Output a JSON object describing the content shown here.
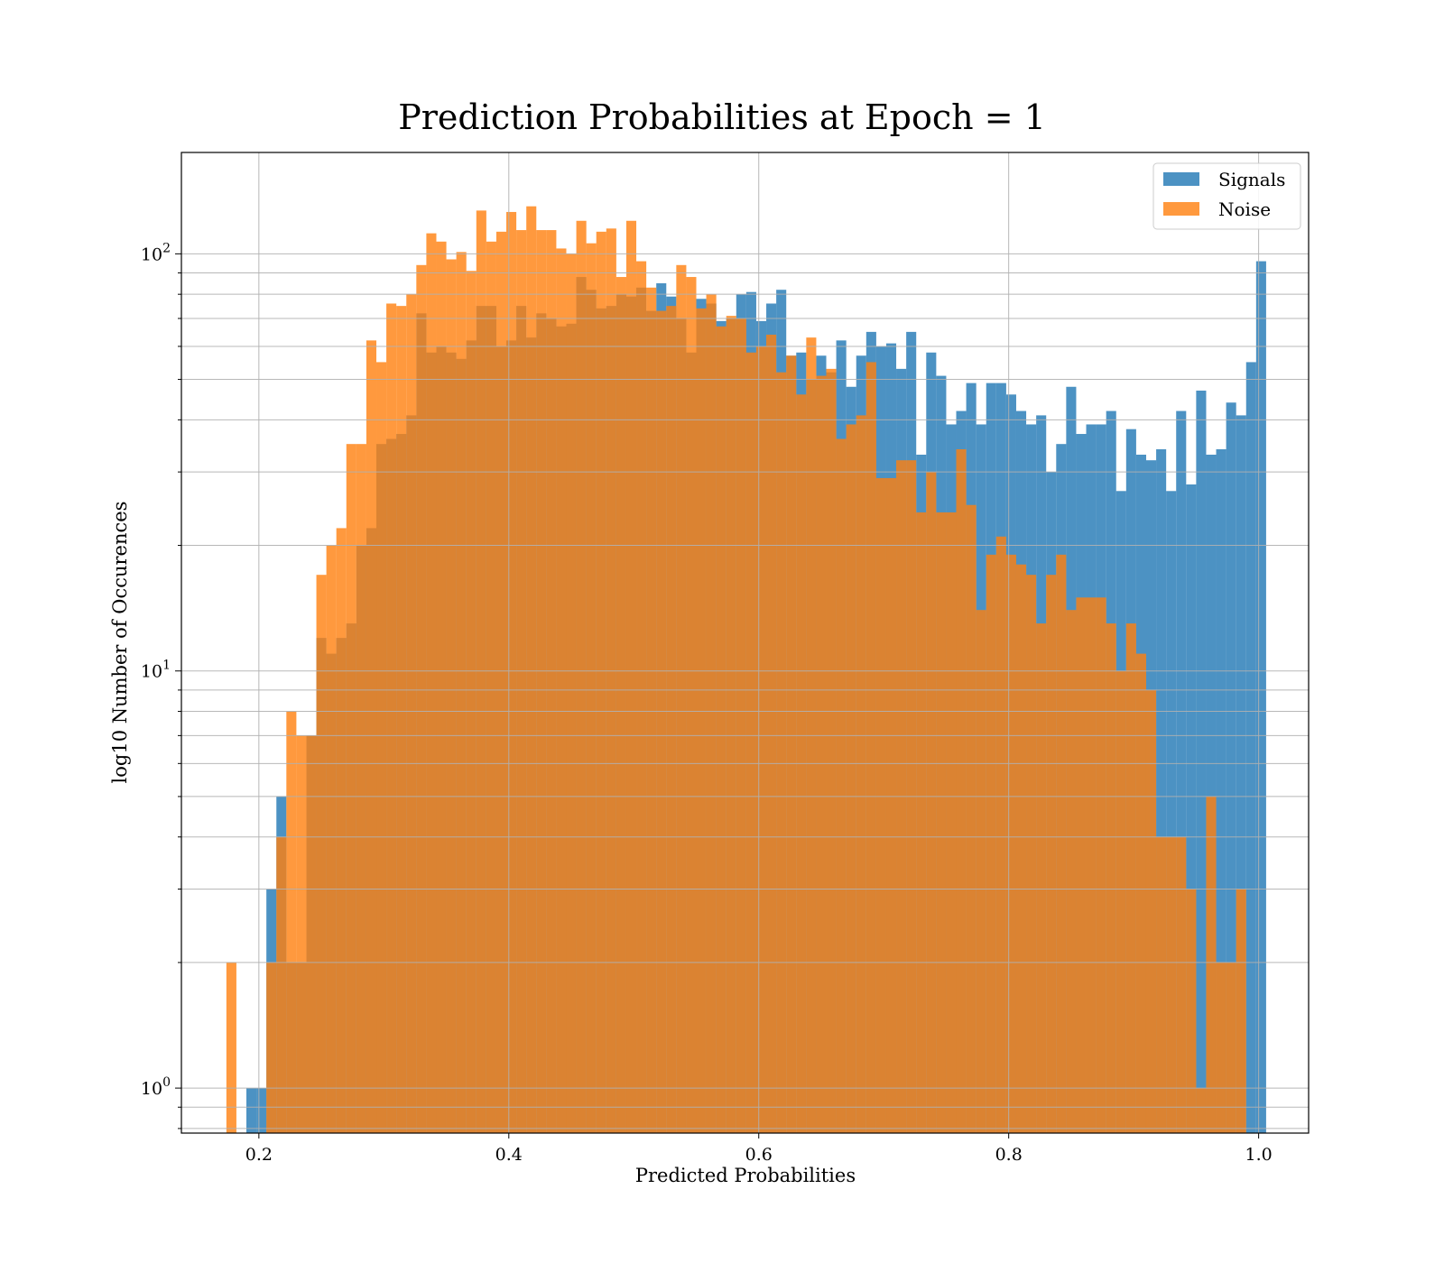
{
  "chart_data": {
    "type": "bar",
    "title": "Prediction Probabilities at Epoch = 1",
    "xlabel": "Predicted Probabilities",
    "ylabel": "log10 Number of Occurences",
    "yscale": "log",
    "xlim": [
      0.138,
      1.04
    ],
    "ylim": [
      0.78,
      175
    ],
    "xticks": [
      0.2,
      0.4,
      0.6,
      0.8,
      1.0
    ],
    "xtick_labels": [
      "0.2",
      "0.4",
      "0.6",
      "0.8",
      "1.0"
    ],
    "yticks": [
      {
        "base": "10",
        "exp": "0",
        "value": 1
      },
      {
        "base": "10",
        "exp": "1",
        "value": 10
      },
      {
        "base": "10",
        "exp": "2",
        "value": 100
      }
    ],
    "grid": true,
    "legend_position": "top-right",
    "series": [
      {
        "name": "Signals",
        "color": "#1f77b4",
        "opacity": 0.8,
        "bins": [
          [
            0.19,
            0.198,
            1
          ],
          [
            0.198,
            0.206,
            1
          ],
          [
            0.206,
            0.214,
            3
          ],
          [
            0.214,
            0.222,
            5
          ],
          [
            0.222,
            0.23,
            2
          ],
          [
            0.23,
            0.238,
            2
          ],
          [
            0.238,
            0.246,
            7
          ],
          [
            0.246,
            0.254,
            12
          ],
          [
            0.254,
            0.262,
            11
          ],
          [
            0.262,
            0.27,
            12
          ],
          [
            0.27,
            0.278,
            13
          ],
          [
            0.278,
            0.286,
            20
          ],
          [
            0.286,
            0.294,
            22
          ],
          [
            0.294,
            0.302,
            35
          ],
          [
            0.302,
            0.31,
            36
          ],
          [
            0.31,
            0.318,
            37
          ],
          [
            0.318,
            0.326,
            41
          ],
          [
            0.326,
            0.334,
            72
          ],
          [
            0.334,
            0.342,
            58
          ],
          [
            0.342,
            0.35,
            60
          ],
          [
            0.35,
            0.358,
            58
          ],
          [
            0.358,
            0.366,
            56
          ],
          [
            0.366,
            0.374,
            62
          ],
          [
            0.374,
            0.382,
            75
          ],
          [
            0.382,
            0.39,
            75
          ],
          [
            0.39,
            0.398,
            60
          ],
          [
            0.398,
            0.406,
            62
          ],
          [
            0.406,
            0.414,
            75
          ],
          [
            0.414,
            0.422,
            63
          ],
          [
            0.422,
            0.43,
            72
          ],
          [
            0.43,
            0.438,
            70
          ],
          [
            0.438,
            0.446,
            67
          ],
          [
            0.446,
            0.454,
            68
          ],
          [
            0.454,
            0.462,
            88
          ],
          [
            0.462,
            0.47,
            82
          ],
          [
            0.47,
            0.478,
            74
          ],
          [
            0.478,
            0.486,
            75
          ],
          [
            0.486,
            0.494,
            80
          ],
          [
            0.494,
            0.502,
            79
          ],
          [
            0.502,
            0.51,
            83
          ],
          [
            0.51,
            0.518,
            73
          ],
          [
            0.518,
            0.526,
            85
          ],
          [
            0.526,
            0.534,
            79
          ],
          [
            0.534,
            0.542,
            70
          ],
          [
            0.542,
            0.55,
            58
          ],
          [
            0.55,
            0.558,
            78
          ],
          [
            0.558,
            0.566,
            76
          ],
          [
            0.566,
            0.574,
            69
          ],
          [
            0.574,
            0.582,
            70
          ],
          [
            0.582,
            0.59,
            80
          ],
          [
            0.59,
            0.598,
            81
          ],
          [
            0.598,
            0.606,
            69
          ],
          [
            0.606,
            0.614,
            76
          ],
          [
            0.614,
            0.622,
            82
          ],
          [
            0.622,
            0.63,
            57
          ],
          [
            0.63,
            0.638,
            58
          ],
          [
            0.638,
            0.646,
            50
          ],
          [
            0.646,
            0.654,
            57
          ],
          [
            0.654,
            0.662,
            52
          ],
          [
            0.662,
            0.67,
            62
          ],
          [
            0.67,
            0.678,
            48
          ],
          [
            0.678,
            0.686,
            57
          ],
          [
            0.686,
            0.694,
            65
          ],
          [
            0.694,
            0.702,
            60
          ],
          [
            0.702,
            0.71,
            61
          ],
          [
            0.71,
            0.718,
            53
          ],
          [
            0.718,
            0.726,
            65
          ],
          [
            0.726,
            0.734,
            33
          ],
          [
            0.734,
            0.742,
            58
          ],
          [
            0.742,
            0.75,
            51
          ],
          [
            0.75,
            0.758,
            39
          ],
          [
            0.758,
            0.766,
            42
          ],
          [
            0.766,
            0.774,
            49
          ],
          [
            0.774,
            0.782,
            39
          ],
          [
            0.782,
            0.79,
            49
          ],
          [
            0.79,
            0.798,
            49
          ],
          [
            0.798,
            0.806,
            46
          ],
          [
            0.806,
            0.814,
            42
          ],
          [
            0.814,
            0.822,
            39
          ],
          [
            0.822,
            0.83,
            41
          ],
          [
            0.83,
            0.838,
            30
          ],
          [
            0.838,
            0.846,
            35
          ],
          [
            0.846,
            0.854,
            48
          ],
          [
            0.854,
            0.862,
            37
          ],
          [
            0.862,
            0.87,
            39
          ],
          [
            0.87,
            0.878,
            39
          ],
          [
            0.878,
            0.886,
            42
          ],
          [
            0.886,
            0.894,
            27
          ],
          [
            0.894,
            0.902,
            38
          ],
          [
            0.902,
            0.91,
            33
          ],
          [
            0.91,
            0.918,
            32
          ],
          [
            0.918,
            0.926,
            34
          ],
          [
            0.926,
            0.934,
            27
          ],
          [
            0.934,
            0.942,
            42
          ],
          [
            0.942,
            0.95,
            28
          ],
          [
            0.95,
            0.958,
            47
          ],
          [
            0.958,
            0.966,
            33
          ],
          [
            0.966,
            0.974,
            34
          ],
          [
            0.974,
            0.982,
            44
          ],
          [
            0.982,
            0.99,
            41
          ],
          [
            0.99,
            0.998,
            55
          ],
          [
            0.998,
            1.006,
            96
          ]
        ]
      },
      {
        "name": "Noise",
        "color": "#ff7f0e",
        "opacity": 0.8,
        "bins": [
          [
            0.174,
            0.182,
            2
          ],
          [
            0.182,
            0.19,
            0
          ],
          [
            0.19,
            0.198,
            0
          ],
          [
            0.198,
            0.206,
            0
          ],
          [
            0.206,
            0.214,
            2
          ],
          [
            0.214,
            0.222,
            4
          ],
          [
            0.222,
            0.23,
            8
          ],
          [
            0.23,
            0.238,
            7
          ],
          [
            0.238,
            0.246,
            7
          ],
          [
            0.246,
            0.254,
            17
          ],
          [
            0.254,
            0.262,
            20
          ],
          [
            0.262,
            0.27,
            22
          ],
          [
            0.27,
            0.278,
            35
          ],
          [
            0.278,
            0.286,
            35
          ],
          [
            0.286,
            0.294,
            62
          ],
          [
            0.294,
            0.302,
            55
          ],
          [
            0.302,
            0.31,
            76
          ],
          [
            0.31,
            0.318,
            75
          ],
          [
            0.318,
            0.326,
            80
          ],
          [
            0.326,
            0.334,
            94
          ],
          [
            0.334,
            0.342,
            112
          ],
          [
            0.342,
            0.35,
            107
          ],
          [
            0.35,
            0.358,
            97
          ],
          [
            0.358,
            0.366,
            101
          ],
          [
            0.366,
            0.374,
            91
          ],
          [
            0.374,
            0.382,
            127
          ],
          [
            0.382,
            0.39,
            107
          ],
          [
            0.39,
            0.398,
            113
          ],
          [
            0.398,
            0.406,
            126
          ],
          [
            0.406,
            0.414,
            114
          ],
          [
            0.414,
            0.422,
            130
          ],
          [
            0.422,
            0.43,
            114
          ],
          [
            0.43,
            0.438,
            114
          ],
          [
            0.438,
            0.446,
            103
          ],
          [
            0.446,
            0.454,
            100
          ],
          [
            0.454,
            0.462,
            120
          ],
          [
            0.462,
            0.47,
            106
          ],
          [
            0.47,
            0.478,
            113
          ],
          [
            0.478,
            0.486,
            115
          ],
          [
            0.486,
            0.494,
            88
          ],
          [
            0.494,
            0.502,
            120
          ],
          [
            0.502,
            0.51,
            96
          ],
          [
            0.51,
            0.518,
            83
          ],
          [
            0.518,
            0.526,
            73
          ],
          [
            0.526,
            0.534,
            75
          ],
          [
            0.534,
            0.542,
            94
          ],
          [
            0.542,
            0.55,
            88
          ],
          [
            0.55,
            0.558,
            74
          ],
          [
            0.558,
            0.566,
            80
          ],
          [
            0.566,
            0.574,
            67
          ],
          [
            0.574,
            0.582,
            71
          ],
          [
            0.582,
            0.59,
            70
          ],
          [
            0.59,
            0.598,
            58
          ],
          [
            0.598,
            0.606,
            60
          ],
          [
            0.606,
            0.614,
            64
          ],
          [
            0.614,
            0.622,
            52
          ],
          [
            0.622,
            0.63,
            57
          ],
          [
            0.63,
            0.638,
            46
          ],
          [
            0.638,
            0.646,
            63
          ],
          [
            0.646,
            0.654,
            51
          ],
          [
            0.654,
            0.662,
            53
          ],
          [
            0.662,
            0.67,
            36
          ],
          [
            0.67,
            0.678,
            39
          ],
          [
            0.678,
            0.686,
            41
          ],
          [
            0.686,
            0.694,
            55
          ],
          [
            0.694,
            0.702,
            29
          ],
          [
            0.702,
            0.71,
            29
          ],
          [
            0.71,
            0.718,
            32
          ],
          [
            0.718,
            0.726,
            32
          ],
          [
            0.726,
            0.734,
            24
          ],
          [
            0.734,
            0.742,
            30
          ],
          [
            0.742,
            0.75,
            24
          ],
          [
            0.75,
            0.758,
            24
          ],
          [
            0.758,
            0.766,
            34
          ],
          [
            0.766,
            0.774,
            25
          ],
          [
            0.774,
            0.782,
            14
          ],
          [
            0.782,
            0.79,
            19
          ],
          [
            0.79,
            0.798,
            21
          ],
          [
            0.798,
            0.806,
            19
          ],
          [
            0.806,
            0.814,
            18
          ],
          [
            0.814,
            0.822,
            17
          ],
          [
            0.822,
            0.83,
            13
          ],
          [
            0.83,
            0.838,
            17
          ],
          [
            0.838,
            0.846,
            19
          ],
          [
            0.846,
            0.854,
            14
          ],
          [
            0.854,
            0.862,
            15
          ],
          [
            0.862,
            0.87,
            15
          ],
          [
            0.87,
            0.878,
            15
          ],
          [
            0.878,
            0.886,
            13
          ],
          [
            0.886,
            0.894,
            10
          ],
          [
            0.894,
            0.902,
            13
          ],
          [
            0.902,
            0.91,
            11
          ],
          [
            0.91,
            0.918,
            9
          ],
          [
            0.918,
            0.926,
            4
          ],
          [
            0.926,
            0.934,
            4
          ],
          [
            0.934,
            0.942,
            4
          ],
          [
            0.942,
            0.95,
            3
          ],
          [
            0.95,
            0.958,
            1
          ],
          [
            0.958,
            0.966,
            5
          ],
          [
            0.966,
            0.974,
            2
          ],
          [
            0.974,
            0.982,
            2
          ],
          [
            0.982,
            0.99,
            3
          ]
        ]
      }
    ]
  }
}
